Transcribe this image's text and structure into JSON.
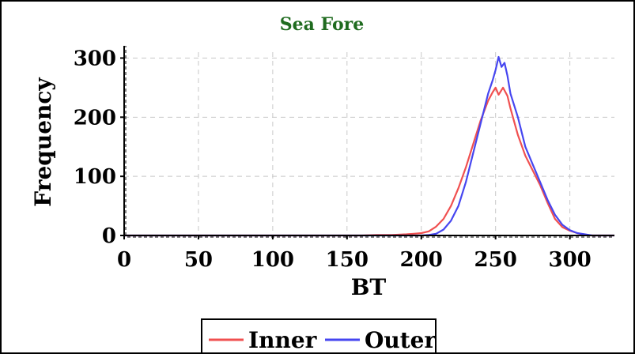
{
  "colors": {
    "inner": "#f05050",
    "outer": "#4646f0",
    "title": "#1f6b1f",
    "grid": "#c8c8c8"
  },
  "chart_data": {
    "type": "line",
    "title": "Sea Fore",
    "xlabel": "BT",
    "ylabel": "Frequency",
    "xlim": [
      0,
      330
    ],
    "ylim": [
      0,
      310
    ],
    "xticks": [
      0,
      50,
      100,
      150,
      200,
      250,
      300
    ],
    "yticks": [
      0,
      100,
      200,
      300
    ],
    "grid": true,
    "legend_position": "bottom-center",
    "series": [
      {
        "name": "Inner",
        "color": "#f05050",
        "x": [
          0,
          160,
          170,
          180,
          190,
          195,
          200,
          205,
          210,
          215,
          220,
          225,
          230,
          235,
          240,
          245,
          248,
          250,
          252,
          255,
          258,
          260,
          265,
          270,
          275,
          280,
          285,
          290,
          295,
          300,
          305,
          310,
          315,
          330
        ],
        "y": [
          0,
          0,
          1,
          1,
          2,
          3,
          4,
          7,
          15,
          28,
          50,
          80,
          115,
          155,
          195,
          228,
          242,
          250,
          238,
          250,
          236,
          215,
          170,
          135,
          110,
          85,
          55,
          28,
          14,
          8,
          4,
          1,
          0,
          0
        ]
      },
      {
        "name": "Outer",
        "color": "#4646f0",
        "x": [
          0,
          200,
          205,
          210,
          215,
          220,
          225,
          230,
          235,
          240,
          245,
          248,
          250,
          252,
          254,
          256,
          258,
          260,
          265,
          270,
          275,
          280,
          285,
          290,
          295,
          300,
          305,
          310,
          315,
          330
        ],
        "y": [
          0,
          0,
          1,
          3,
          10,
          25,
          50,
          90,
          140,
          190,
          240,
          262,
          280,
          302,
          285,
          292,
          270,
          240,
          200,
          150,
          120,
          90,
          60,
          35,
          18,
          9,
          4,
          2,
          0,
          0
        ]
      }
    ]
  }
}
